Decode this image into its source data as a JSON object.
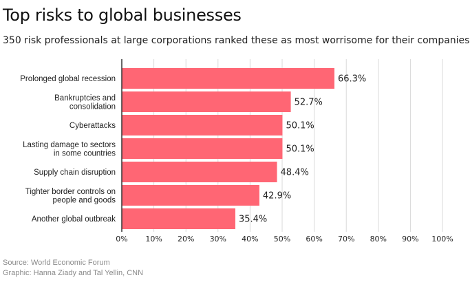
{
  "title": "Top risks to global businesses",
  "subtitle": "350 risk professionals at large corporations ranked these as most worrisome for their companies.",
  "footer": {
    "source": "Source: World Economic Forum",
    "credit": "Graphic: Hanna Ziady and Tal Yellin, CNN"
  },
  "chart_data": {
    "type": "bar",
    "orientation": "horizontal",
    "categories": [
      [
        "Prolonged global recession"
      ],
      [
        "Bankruptcies and",
        "consolidation"
      ],
      [
        "Cyberattacks"
      ],
      [
        "Lasting damage to sectors",
        "in some countries"
      ],
      [
        "Supply chain disruption"
      ],
      [
        "Tighter border controls on",
        "people and goods"
      ],
      [
        "Another global outbreak"
      ]
    ],
    "values": [
      66.3,
      52.7,
      50.1,
      50.1,
      48.4,
      42.9,
      35.4
    ],
    "value_labels": [
      "66.3%",
      "52.7%",
      "50.1%",
      "50.1%",
      "48.4%",
      "42.9%",
      "35.4%"
    ],
    "xlim": [
      0,
      100
    ],
    "xticks": [
      0,
      10,
      20,
      30,
      40,
      50,
      60,
      70,
      80,
      90,
      100
    ],
    "xtick_labels": [
      "0%",
      "10%",
      "20%",
      "30%",
      "40%",
      "50%",
      "60%",
      "70%",
      "80%",
      "90%",
      "100%"
    ],
    "grid": true,
    "legend": "none",
    "bar_color": "#ff6674",
    "grid_color": "#d9d9d9",
    "axis_color": "#333333"
  }
}
